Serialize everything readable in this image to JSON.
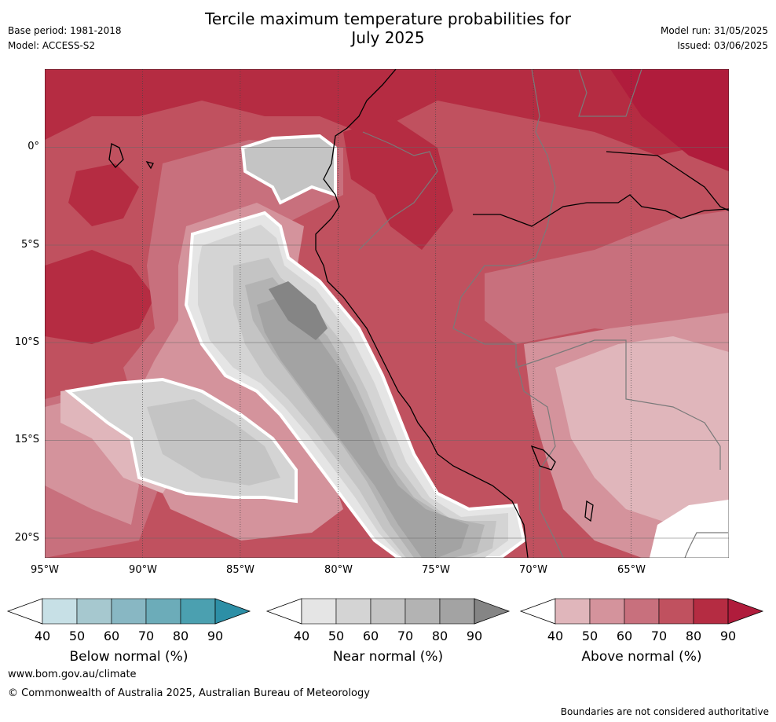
{
  "header": {
    "title_line1": "Tercile maximum temperature probabilities for",
    "title_line2": "July 2025",
    "base_period": "Base period: 1981-2018",
    "model": "Model: ACCESS-S2",
    "model_run": "Model run: 31/05/2025",
    "issued": "Issued: 03/06/2025"
  },
  "map": {
    "extent": {
      "lon_min": -95,
      "lon_max": -60,
      "lat_min": -21,
      "lat_max": 4
    },
    "lat_labels": [
      "0°",
      "5°S",
      "10°S",
      "15°S",
      "20°S"
    ],
    "lon_labels": [
      "95°W",
      "90°W",
      "85°W",
      "80°W",
      "75°W",
      "70°W",
      "65°W"
    ]
  },
  "colorbars": [
    {
      "name": "Below normal (%)",
      "ticks": [
        "40",
        "50",
        "60",
        "70",
        "80",
        "90"
      ],
      "colors": [
        "#c7e0e6",
        "#a6c8cf",
        "#88b7c3",
        "#6cacb9",
        "#4ba0b0",
        "#2d8fa6"
      ]
    },
    {
      "name": "Near normal (%)",
      "ticks": [
        "40",
        "50",
        "60",
        "70",
        "80",
        "90"
      ],
      "colors": [
        "#e5e5e5",
        "#d4d4d4",
        "#c4c4c4",
        "#b3b3b3",
        "#a3a3a3",
        "#858585"
      ]
    },
    {
      "name": "Above normal (%)",
      "ticks": [
        "40",
        "50",
        "60",
        "70",
        "80",
        "90"
      ],
      "colors": [
        "#e0b6bb",
        "#d4939c",
        "#c8707d",
        "#c0515f",
        "#b52c42",
        "#b01c3c"
      ]
    }
  ],
  "footer": {
    "website": "www.bom.gov.au/climate",
    "copyright": "© Commonwealth of Australia 2025, Australian Bureau of Meteorology",
    "disclaimer": "Boundaries are not considered authoritative"
  }
}
